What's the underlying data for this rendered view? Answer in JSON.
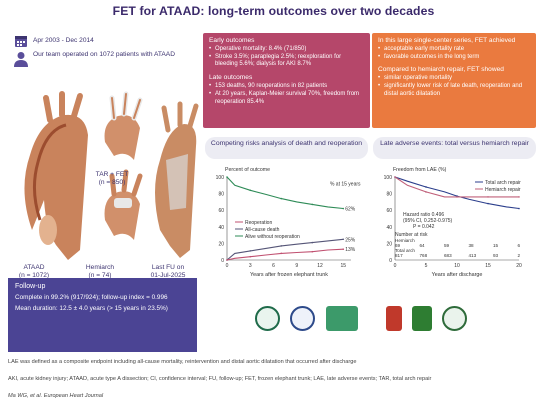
{
  "title": "FET for ATAAD: long-term outcomes over two decades",
  "intro": {
    "dates": "Apr 2003 - Dec 2014",
    "patients": "Our team operated on 1072 patients with ATAAD",
    "calendar_icon": "calendar-icon",
    "patient_icon": "person-icon"
  },
  "figures": {
    "ataad_label": "ATAAD",
    "ataad_n": "(n = 1072)",
    "tar_label": "TAR + FET",
    "tar_n": "(n = 850)",
    "hemiarch_label": "Hemiarch",
    "hemiarch_n": "(n = 74)",
    "lastfu_label": "Last FU on",
    "lastfu_date": "01-Jul-2025"
  },
  "early": {
    "heading": "Early outcomes",
    "items": [
      "Operative mortality: 8.4% (71/850)",
      "Stroke 3.5%; paraplegia 2.5%; reexploration for bleeding 5.6%; dialysis for AKI 8.7%"
    ],
    "late_heading": "Late outcomes",
    "late_items": [
      "153 deaths, 90 reoperations in 82 patients",
      "At 20 years, Kaplan-Meier survival 70%, freedom from reoperation 85.4%"
    ]
  },
  "late_panel": {
    "intro": "In this large single-center series, FET achieved",
    "items": [
      "acceptable early mortality rate",
      "favorable outcomes in the long term"
    ],
    "compare_heading": "Compared to hemiarch repair, FET showed",
    "compare_items": [
      "similar operative mortality",
      "significantly lower risk of late death, reoperation and distal aortic dilatation"
    ]
  },
  "followup": {
    "heading": "Follow-up",
    "items": [
      "Complete in 99.2% (917/924); follow-up index = 0.996",
      "Mean duration: 12.5 ± 4.0 years (> 15 years in 23.5%)"
    ]
  },
  "footnotes": {
    "lae": "LAE was defined as a composite endpoint including all-cause mortality, reintervention and distal aortic dilatation that occurred after discharge",
    "abbrev": "AKI, acute kidney injury; ATAAD, acute type A dissection; CI, confidence interval; FU, follow-up; FET, frozen elephant trunk; LAE, late adverse events; TAR, total arch repair",
    "citation": "Ma WG, et al. European Heart Journal"
  },
  "chart_data": [
    {
      "type": "line",
      "title": "Competing risks analysis of death and reoperation",
      "ylabel": "Percent of outcome",
      "xlabel": "Years after frozen elephant trunk",
      "ylim": [
        0,
        100
      ],
      "xlim": [
        0,
        16
      ],
      "yticks": [
        "0",
        "20",
        "40",
        "60",
        "80",
        "100"
      ],
      "xticks": [
        "0",
        "3",
        "6",
        "9",
        "12",
        "15"
      ],
      "series": [
        {
          "name": "Alive without reoperation",
          "color": "#2e8b57",
          "x": [
            0,
            1,
            3,
            5,
            7,
            9,
            11,
            13,
            15
          ],
          "y": [
            100,
            90,
            84,
            79,
            74,
            70,
            67,
            64,
            62
          ]
        },
        {
          "name": "All-cause death",
          "color": "#555577",
          "x": [
            0,
            1,
            3,
            5,
            7,
            9,
            11,
            13,
            15
          ],
          "y": [
            0,
            8,
            11,
            14,
            17,
            19,
            21,
            23,
            25
          ]
        },
        {
          "name": "Reoperation",
          "color": "#c05070",
          "x": [
            0,
            1,
            3,
            5,
            7,
            9,
            11,
            13,
            15
          ],
          "y": [
            0,
            2,
            4,
            6,
            8,
            9,
            10,
            12,
            13
          ]
        }
      ],
      "end_labels": [
        "62%",
        "25%",
        "13%"
      ],
      "annotation": "% at 15 years",
      "grid": false,
      "legend": "center-left"
    },
    {
      "type": "line",
      "title": "Late adverse events: total versus hemiarch repair",
      "ylabel": "Freedom from LAE (%)",
      "xlabel": "Years after discharge",
      "ylim": [
        0,
        100
      ],
      "xlim": [
        0,
        20
      ],
      "yticks": [
        "0",
        "20",
        "40",
        "60",
        "80",
        "100"
      ],
      "xticks": [
        "0",
        "5",
        "10",
        "15",
        "20"
      ],
      "series": [
        {
          "name": "Total arch repair",
          "color": "#2b3e8c",
          "x": [
            0,
            2,
            5,
            8,
            10,
            12,
            15,
            18,
            20
          ],
          "y": [
            100,
            95,
            88,
            82,
            77,
            73,
            68,
            64,
            62
          ]
        },
        {
          "name": "Hemiarch repair",
          "color": "#c0607a",
          "x": [
            0,
            2,
            5,
            8,
            10,
            12,
            15,
            18,
            20
          ],
          "y": [
            100,
            90,
            82,
            76,
            76,
            76,
            76,
            76,
            76
          ]
        }
      ],
      "hazard": {
        "line1": "Hazard ratio 0.496",
        "line2": "(95% CI, 0.252-0.975)",
        "line3": "P = 0.042"
      },
      "risk_table": {
        "title": "Number at risk",
        "rows": [
          {
            "label": "Hemiarch",
            "values": [
              "69",
              "64",
              "59",
              "38",
              "15",
              "6"
            ]
          },
          {
            "label": "Total arch",
            "values": [
              "817",
              "768",
              "683",
              "413",
              "93",
              "2"
            ]
          }
        ]
      },
      "legend": "top-right"
    }
  ],
  "logos": [
    "hospital-logo",
    "university-logo",
    "society-logo",
    "institute-logo",
    "medical-college-logo",
    "association-logo"
  ],
  "colors": {
    "title": "#3b2a6b",
    "early": "#b5476a",
    "late": "#ea7a3f",
    "followup": "#4b4494"
  }
}
